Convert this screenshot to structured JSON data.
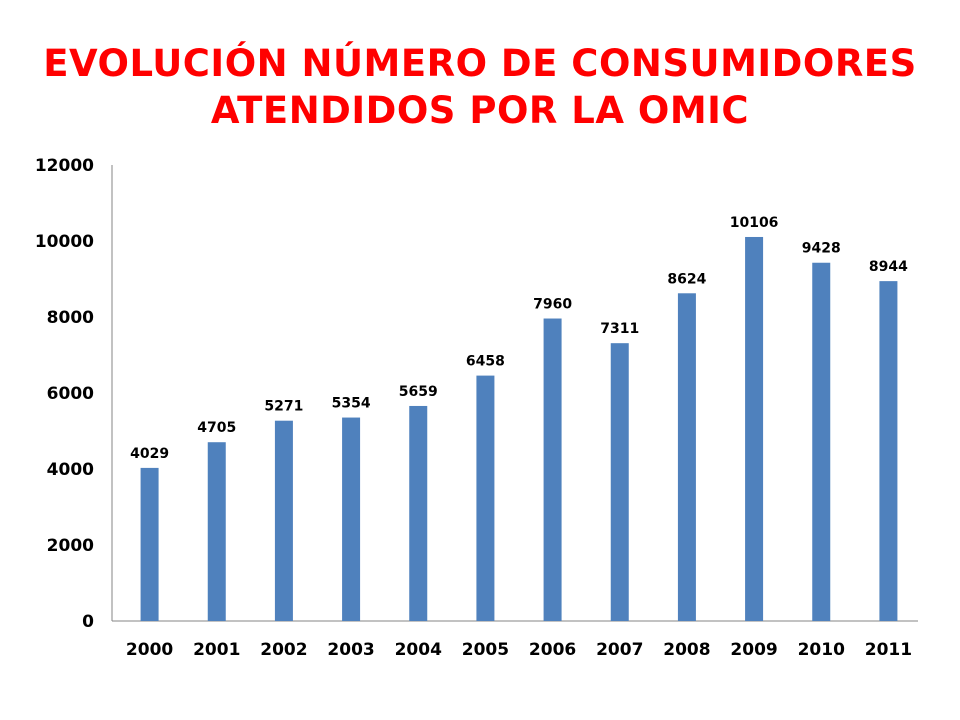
{
  "title_lines": [
    "EVOLUCIÓN NÚMERO DE CONSUMIDORES",
    "ATENDIDOS POR LA OMIC"
  ],
  "colors": {
    "title": "#ff0000",
    "bar": "#4f81bd",
    "axis": "#868686"
  },
  "chart_data": {
    "type": "bar",
    "title": "EVOLUCIÓN NÚMERO DE CONSUMIDORES ATENDIDOS POR LA OMIC",
    "xlabel": "",
    "ylabel": "",
    "categories": [
      "2000",
      "2001",
      "2002",
      "2003",
      "2004",
      "2005",
      "2006",
      "2007",
      "2008",
      "2009",
      "2010",
      "2011"
    ],
    "values": [
      4029,
      4705,
      5271,
      5354,
      5659,
      6458,
      7960,
      7311,
      8624,
      10106,
      9428,
      8944
    ],
    "data_labels": [
      "4029",
      "4705",
      "5271",
      "5354",
      "5659",
      "6458",
      "7960",
      "7311",
      "8624",
      "10106",
      "9428",
      "8944"
    ],
    "ylim": [
      0,
      12000
    ],
    "yticks": [
      0,
      2000,
      4000,
      6000,
      8000,
      10000,
      12000
    ],
    "ytick_labels": [
      "0",
      "2000",
      "4000",
      "6000",
      "8000",
      "10000",
      "12000"
    ],
    "grid": false,
    "legend": "none"
  }
}
